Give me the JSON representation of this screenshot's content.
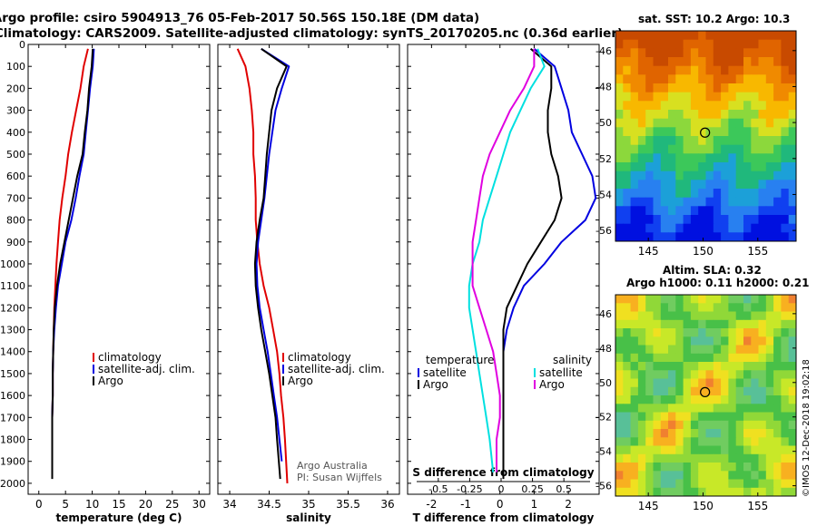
{
  "header": {
    "line1": "Argo profile: csiro 5904913_76 05-Feb-2017 50.56S 150.18E (DM data)",
    "line2": "Climatology: CARS2009. Satellite-adjusted climatology: synTS_20170205.nc (0.36d earlier)"
  },
  "colors": {
    "climatology": "#e00000",
    "satellite": "#0000e0",
    "argo": "#000000",
    "sat_salinity": "#00e0e0",
    "argo_salinity": "#e000e0"
  },
  "depth_axis": {
    "min": 0,
    "max": 2050,
    "ticks": [
      0,
      100,
      200,
      300,
      400,
      500,
      600,
      700,
      800,
      900,
      1000,
      1100,
      1200,
      1300,
      1400,
      1500,
      1600,
      1700,
      1800,
      1900,
      2000
    ]
  },
  "chart_data": [
    {
      "type": "line",
      "xlabel": "temperature (deg C)",
      "xticks": [
        "0",
        "5",
        "10",
        "15",
        "20",
        "25",
        "30"
      ],
      "xtick_values": [
        0,
        5,
        10,
        15,
        20,
        25,
        30
      ],
      "xlim": [
        -2,
        32
      ],
      "ylim": [
        2050,
        0
      ],
      "legend_items": [
        "climatology",
        "satellite-adj. clim.",
        "Argo"
      ],
      "series": [
        {
          "name": "climatology",
          "color": "#e00000",
          "x": [
            9.2,
            8.4,
            7.8,
            7.0,
            6.2,
            5.5,
            5.0,
            4.4,
            3.9,
            3.6,
            3.3,
            3.1,
            2.9,
            2.8,
            2.7,
            2.6,
            2.6,
            2.5,
            2.5,
            2.5
          ],
          "y": [
            20,
            100,
            200,
            300,
            400,
            500,
            600,
            700,
            800,
            900,
            1000,
            1100,
            1200,
            1300,
            1400,
            1500,
            1600,
            1700,
            1800,
            1900
          ]
        },
        {
          "name": "satellite-adj. clim.",
          "color": "#0000e0",
          "x": [
            10.3,
            10.1,
            9.6,
            9.2,
            8.8,
            8.4,
            7.6,
            6.9,
            6.1,
            5.0,
            4.3,
            3.6,
            3.2,
            2.9,
            2.7,
            2.6,
            2.6,
            2.5,
            2.5,
            2.5
          ],
          "y": [
            20,
            100,
            200,
            300,
            400,
            500,
            600,
            700,
            800,
            900,
            1000,
            1100,
            1200,
            1300,
            1400,
            1500,
            1600,
            1700,
            1800,
            1900
          ]
        },
        {
          "name": "Argo",
          "color": "#000000",
          "x": [
            10.1,
            9.9,
            9.4,
            9.1,
            8.6,
            8.2,
            7.2,
            6.4,
            5.6,
            4.8,
            4.0,
            3.4,
            3.0,
            2.8,
            2.7,
            2.6,
            2.6,
            2.5,
            2.5,
            2.5
          ],
          "y": [
            20,
            100,
            200,
            300,
            400,
            500,
            600,
            700,
            800,
            900,
            1000,
            1100,
            1200,
            1300,
            1400,
            1500,
            1600,
            1700,
            1800,
            1980
          ]
        }
      ]
    },
    {
      "type": "line",
      "xlabel": "salinity",
      "xticks": [
        "34",
        "34.5",
        "35",
        "35.5",
        "36"
      ],
      "xtick_values": [
        34,
        34.5,
        35,
        35.5,
        36
      ],
      "xlim": [
        33.85,
        36.15
      ],
      "ylim": [
        2050,
        0
      ],
      "legend_items": [
        "climatology",
        "satellite-adj. clim.",
        "Argo"
      ],
      "annotations": [
        "Argo Australia",
        "PI: Susan Wijffels"
      ],
      "series": [
        {
          "name": "climatology",
          "color": "#e00000",
          "x": [
            34.1,
            34.2,
            34.25,
            34.28,
            34.3,
            34.3,
            34.32,
            34.33,
            34.33,
            34.35,
            34.38,
            34.43,
            34.5,
            34.55,
            34.6,
            34.63,
            34.65,
            34.68,
            34.7,
            34.73
          ],
          "y": [
            20,
            100,
            200,
            300,
            400,
            500,
            600,
            700,
            800,
            900,
            1000,
            1100,
            1200,
            1300,
            1400,
            1500,
            1600,
            1700,
            1800,
            2000
          ]
        },
        {
          "name": "satellite-adj. clim.",
          "color": "#0000e0",
          "x": [
            34.4,
            34.75,
            34.66,
            34.58,
            34.54,
            34.5,
            34.47,
            34.44,
            34.4,
            34.36,
            34.34,
            34.35,
            34.38,
            34.43,
            34.48,
            34.52,
            34.56,
            34.6,
            34.63,
            34.66
          ],
          "y": [
            20,
            100,
            200,
            300,
            400,
            500,
            600,
            700,
            800,
            900,
            1000,
            1100,
            1200,
            1300,
            1400,
            1500,
            1600,
            1700,
            1800,
            1900
          ]
        },
        {
          "name": "Argo",
          "color": "#000000",
          "x": [
            34.4,
            34.72,
            34.6,
            34.53,
            34.5,
            34.47,
            34.45,
            34.43,
            34.38,
            34.34,
            34.32,
            34.33,
            34.36,
            34.4,
            34.45,
            34.5,
            34.54,
            34.58,
            34.6,
            34.64
          ],
          "y": [
            20,
            100,
            200,
            300,
            400,
            500,
            600,
            700,
            800,
            900,
            1000,
            1100,
            1200,
            1300,
            1400,
            1500,
            1600,
            1700,
            1800,
            1980
          ]
        }
      ]
    },
    {
      "type": "line",
      "xlabel": "T difference from climatology",
      "xlabel2": "S difference from climatology",
      "xticks": [
        "-2",
        "-1",
        "0",
        "1",
        "2"
      ],
      "xtick_values": [
        -2,
        -1,
        0,
        1,
        2
      ],
      "xticks_s": [
        "-0.5",
        "-0.25",
        "0",
        "0.25",
        "0.5"
      ],
      "xtick_values_s": [
        -0.5,
        -0.25,
        0,
        0.25,
        0.5
      ],
      "xlim": [
        -2.7,
        2.9
      ],
      "ylim": [
        2050,
        0
      ],
      "legend_headers": [
        "temperature",
        "salinity"
      ],
      "legend_items": [
        "satellite",
        "Argo",
        "satellite",
        "Argo"
      ],
      "series": [
        {
          "name": "satellite",
          "color": "#0000e0",
          "x": [
            1.0,
            1.6,
            1.8,
            2.0,
            2.1,
            2.4,
            2.7,
            2.8,
            2.5,
            1.8,
            1.3,
            0.7,
            0.4,
            0.2,
            0.1,
            0.1,
            0.1,
            0.1,
            0.1,
            0.1
          ],
          "y": [
            20,
            100,
            200,
            300,
            400,
            500,
            600,
            700,
            800,
            900,
            1000,
            1100,
            1200,
            1300,
            1400,
            1500,
            1600,
            1700,
            1800,
            1900
          ]
        },
        {
          "name": "Argo",
          "color": "#000000",
          "x": [
            0.9,
            1.5,
            1.5,
            1.4,
            1.4,
            1.5,
            1.7,
            1.8,
            1.6,
            1.2,
            0.8,
            0.5,
            0.2,
            0.1,
            0.1,
            0.1,
            0.1,
            0.1,
            0.1,
            0.1
          ],
          "y": [
            20,
            100,
            200,
            300,
            400,
            500,
            600,
            700,
            800,
            900,
            1000,
            1100,
            1200,
            1300,
            1400,
            1500,
            1600,
            1700,
            1800,
            1980
          ]
        },
        {
          "name": "satellite",
          "color": "#00e0e0",
          "x": [
            1.1,
            1.3,
            0.9,
            0.6,
            0.3,
            0.1,
            -0.1,
            -0.3,
            -0.5,
            -0.6,
            -0.8,
            -0.9,
            -0.9,
            -0.8,
            -0.7,
            -0.6,
            -0.5,
            -0.4,
            -0.3,
            -0.2
          ],
          "y": [
            20,
            100,
            200,
            300,
            400,
            500,
            600,
            700,
            800,
            900,
            1000,
            1100,
            1200,
            1300,
            1400,
            1500,
            1600,
            1700,
            1800,
            1950
          ]
        },
        {
          "name": "Argo",
          "color": "#e000e0",
          "x": [
            1.0,
            1.0,
            0.7,
            0.3,
            0.0,
            -0.3,
            -0.5,
            -0.6,
            -0.7,
            -0.8,
            -0.8,
            -0.8,
            -0.6,
            -0.4,
            -0.2,
            -0.1,
            0.0,
            0.0,
            -0.1,
            -0.1
          ],
          "y": [
            20,
            100,
            200,
            300,
            400,
            500,
            600,
            700,
            800,
            900,
            1000,
            1100,
            1200,
            1300,
            1400,
            1500,
            1600,
            1700,
            1800,
            1950
          ]
        }
      ]
    }
  ],
  "maps": {
    "sst": {
      "title": "sat. SST: 10.2 Argo: 10.3",
      "xticks": [
        "145",
        "150",
        "155"
      ],
      "xtick_values": [
        145,
        150,
        155
      ],
      "yticks": [
        "-46",
        "-48",
        "-50",
        "-52",
        "-54",
        "-56"
      ],
      "ytick_values": [
        -46,
        -48,
        -50,
        -52,
        -54,
        -56
      ],
      "lon_range": [
        142,
        158.5
      ],
      "lat_range": [
        -56.6,
        -44.9
      ],
      "marker": {
        "lon": 150.18,
        "lat": -50.56
      }
    },
    "sla": {
      "title1": "Altim. SLA: 0.32",
      "title2": "Argo h1000: 0.11 h2000: 0.21",
      "xticks": [
        "145",
        "150",
        "155"
      ],
      "xtick_values": [
        145,
        150,
        155
      ],
      "yticks": [
        "-46",
        "-48",
        "-50",
        "-52",
        "-54",
        "-56"
      ],
      "ytick_values": [
        -46,
        -48,
        -50,
        -52,
        -54,
        -56
      ],
      "lon_range": [
        142,
        158.5
      ],
      "lat_range": [
        -56.6,
        -44.9
      ],
      "marker": {
        "lon": 150.18,
        "lat": -50.56
      }
    }
  },
  "credit": "©IMOS 12-Dec-2018 19:02:18"
}
